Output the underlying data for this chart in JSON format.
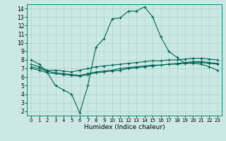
{
  "title": "",
  "xlabel": "Humidex (Indice chaleur)",
  "background_color": "#cce8e4",
  "grid_color": "#aad4cc",
  "line_color": "#006655",
  "xlim": [
    -0.5,
    23.5
  ],
  "ylim": [
    1.5,
    14.5
  ],
  "xticks": [
    0,
    1,
    2,
    3,
    4,
    5,
    6,
    7,
    8,
    9,
    10,
    11,
    12,
    13,
    14,
    15,
    16,
    17,
    18,
    19,
    20,
    21,
    22,
    23
  ],
  "yticks": [
    2,
    3,
    4,
    5,
    6,
    7,
    8,
    9,
    10,
    11,
    12,
    13,
    14
  ],
  "lines": [
    {
      "x": [
        0,
        1,
        2,
        3,
        4,
        5,
        6,
        7,
        8,
        9,
        10,
        11,
        12,
        13,
        14,
        15,
        16,
        17,
        18,
        19,
        20,
        21,
        22,
        23
      ],
      "y": [
        8.0,
        7.5,
        6.5,
        5.0,
        4.5,
        4.0,
        1.8,
        5.0,
        9.5,
        10.5,
        12.8,
        12.9,
        13.7,
        13.7,
        14.2,
        13.0,
        10.7,
        9.0,
        8.3,
        7.6,
        7.6,
        7.5,
        7.2,
        6.8
      ]
    },
    {
      "x": [
        0,
        1,
        2,
        3,
        4,
        5,
        6,
        7,
        8,
        9,
        10,
        11,
        12,
        13,
        14,
        15,
        16,
        17,
        18,
        19,
        20,
        21,
        22,
        23
      ],
      "y": [
        7.5,
        7.2,
        6.8,
        6.8,
        6.7,
        6.6,
        6.8,
        7.0,
        7.2,
        7.3,
        7.4,
        7.5,
        7.6,
        7.7,
        7.8,
        7.9,
        7.9,
        8.0,
        8.0,
        8.1,
        8.2,
        8.2,
        8.1,
        8.0
      ]
    },
    {
      "x": [
        0,
        1,
        2,
        3,
        4,
        5,
        6,
        7,
        8,
        9,
        10,
        11,
        12,
        13,
        14,
        15,
        16,
        17,
        18,
        19,
        20,
        21,
        22,
        23
      ],
      "y": [
        7.0,
        6.8,
        6.5,
        6.4,
        6.3,
        6.2,
        6.1,
        6.3,
        6.5,
        6.6,
        6.7,
        6.8,
        7.0,
        7.1,
        7.2,
        7.3,
        7.4,
        7.5,
        7.5,
        7.6,
        7.7,
        7.7,
        7.6,
        7.5
      ]
    },
    {
      "x": [
        0,
        1,
        2,
        3,
        4,
        5,
        6,
        7,
        8,
        9,
        10,
        11,
        12,
        13,
        14,
        15,
        16,
        17,
        18,
        19,
        20,
        21,
        22,
        23
      ],
      "y": [
        7.2,
        7.0,
        6.7,
        6.5,
        6.4,
        6.3,
        6.2,
        6.4,
        6.6,
        6.7,
        6.8,
        7.0,
        7.1,
        7.2,
        7.3,
        7.4,
        7.4,
        7.5,
        7.6,
        7.7,
        7.8,
        7.8,
        7.7,
        7.6
      ]
    }
  ]
}
